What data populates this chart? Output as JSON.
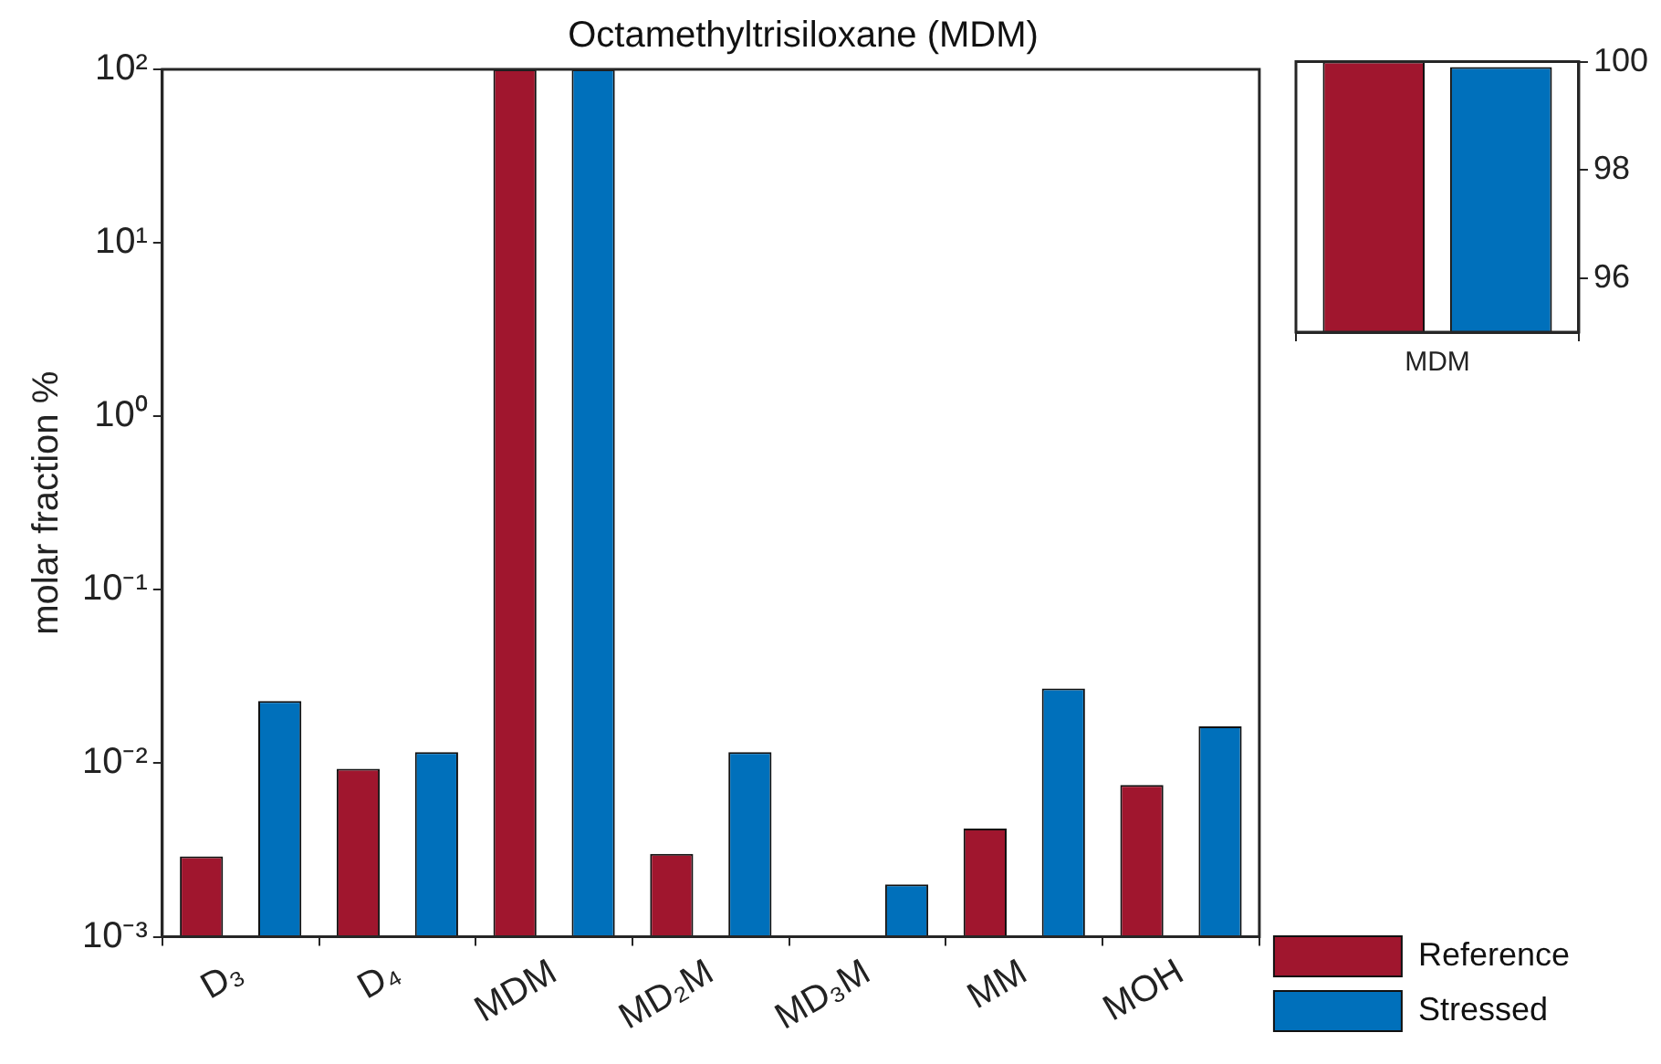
{
  "chart_data": [
    {
      "type": "bar",
      "title": "Octamethyltrisiloxane (MDM)",
      "ylabel": "molar fraction %",
      "categories": [
        "D₃",
        "D₄",
        "MDM",
        "MD₂M",
        "MD₃M",
        "MM",
        "MOH"
      ],
      "series": [
        {
          "name": "Reference",
          "color": "#a0162e",
          "values": [
            0.0029,
            0.0093,
            100,
            0.003,
            null,
            0.0042,
            0.0075
          ]
        },
        {
          "name": "Stressed",
          "color": "#0070bb",
          "values": [
            0.0228,
            0.0116,
            99.9,
            0.0116,
            0.002,
            0.027,
            0.0163
          ]
        }
      ],
      "log": true,
      "ylim": [
        0.001,
        100
      ],
      "yticks": [
        {
          "value": 0.001,
          "label": "10⁻³"
        },
        {
          "value": 0.01,
          "label": "10⁻²"
        },
        {
          "value": 0.1,
          "label": "10⁻¹"
        },
        {
          "value": 1,
          "label": "10⁰"
        },
        {
          "value": 10,
          "label": "10¹"
        },
        {
          "value": 100,
          "label": "10²"
        }
      ],
      "grid": false,
      "legend": "bottom right"
    },
    {
      "type": "bar",
      "categories": [
        "MDM"
      ],
      "series": [
        {
          "color": "#a0162e",
          "values": [
            100
          ]
        },
        {
          "color": "#0070bb",
          "values": [
            99.9
          ]
        }
      ],
      "ylim": [
        95,
        100
      ],
      "yticks": [
        96,
        98,
        100
      ],
      "grid": false
    }
  ]
}
